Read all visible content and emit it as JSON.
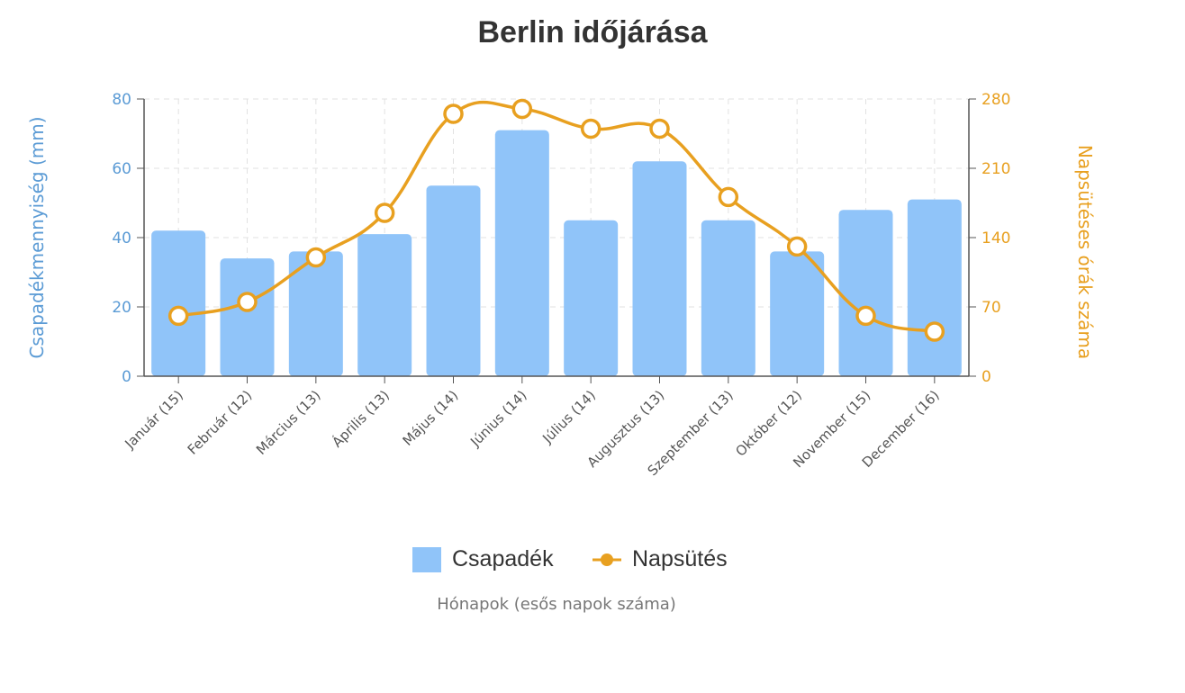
{
  "chart_data": {
    "type": "bar+line",
    "title": "Berlin időjárása",
    "xlabel": "Hónapok (esős napok száma)",
    "ylabel_left": "Csapadékmennyiség (mm)",
    "ylabel_right": "Napsütéses órák száma",
    "categories": [
      "Január (15)",
      "Február (12)",
      "Március (13)",
      "Április (13)",
      "Május (14)",
      "Június (14)",
      "Július (14)",
      "Augusztus (13)",
      "Szeptember (13)",
      "Október (12)",
      "November (15)",
      "December (16)"
    ],
    "ylim_left": [
      0,
      80
    ],
    "ylim_right": [
      0,
      280
    ],
    "yticks_left": [
      "0",
      "20",
      "40",
      "60",
      "80"
    ],
    "yticks_right": [
      "0",
      "70",
      "140",
      "210",
      "280"
    ],
    "grid": true,
    "legend_position": "bottom",
    "series": [
      {
        "name": "Csapadék",
        "type": "bar",
        "axis": "left",
        "color": "#90c4f9",
        "values": [
          42,
          34,
          36,
          41,
          55,
          71,
          45,
          62,
          45,
          36,
          48,
          51
        ]
      },
      {
        "name": "Napsütés",
        "type": "line",
        "axis": "right",
        "color": "#e8a020",
        "values": [
          61,
          75,
          120,
          165,
          265,
          270,
          250,
          250,
          181,
          131,
          61,
          45
        ]
      }
    ]
  }
}
